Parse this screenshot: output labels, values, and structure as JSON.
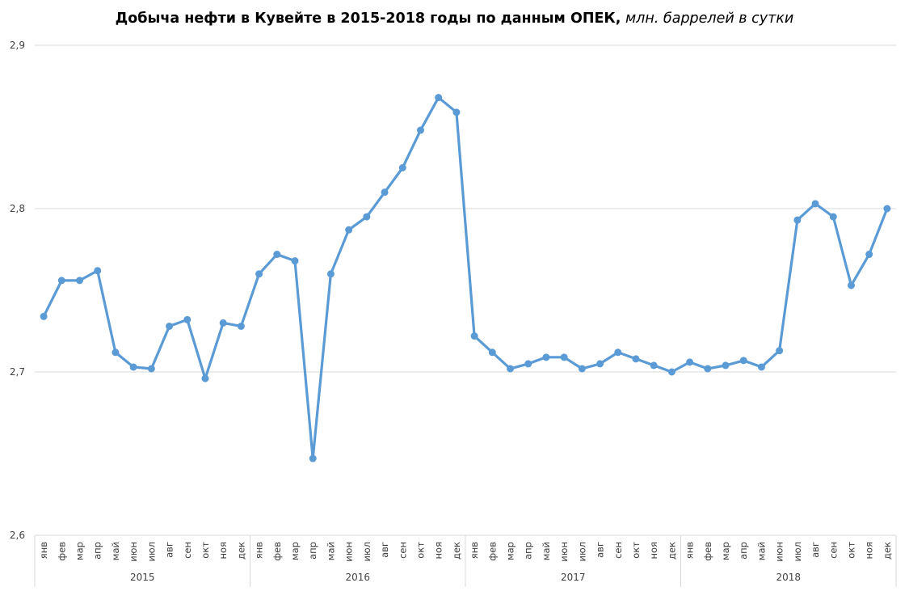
{
  "chart_data": {
    "type": "line",
    "title": "Добыча нефти в Кувейте в 2015-2018 годы по данным ОПЕК,",
    "subtitle": "млн. баррелей в сутки",
    "xlabel": "",
    "ylabel": "",
    "ylim": [
      2.6,
      2.9
    ],
    "yticks": [
      "2,6",
      "2,7",
      "2,8",
      "2,9"
    ],
    "ytick_values": [
      2.6,
      2.7,
      2.8,
      2.9
    ],
    "grid": true,
    "legend": "none",
    "line_color": "#5B9BD5",
    "months": [
      "янв",
      "фев",
      "мар",
      "апр",
      "май",
      "июн",
      "июл",
      "авг",
      "сен",
      "окт",
      "ноя",
      "дек"
    ],
    "years": [
      "2015",
      "2016",
      "2017",
      "2018"
    ],
    "series": [
      {
        "values": [
          2.734,
          2.756,
          2.756,
          2.762,
          2.712,
          2.703,
          2.702,
          2.728,
          2.732,
          2.696,
          2.73,
          2.728,
          2.76,
          2.772,
          2.768,
          2.647,
          2.76,
          2.787,
          2.795,
          2.81,
          2.825,
          2.848,
          2.868,
          2.859,
          2.722,
          2.712,
          2.702,
          2.705,
          2.709,
          2.709,
          2.702,
          2.705,
          2.712,
          2.708,
          2.704,
          2.7,
          2.706,
          2.702,
          2.704,
          2.707,
          2.703,
          2.713,
          2.793,
          2.803,
          2.795,
          2.753,
          2.772,
          2.8
        ]
      }
    ]
  }
}
